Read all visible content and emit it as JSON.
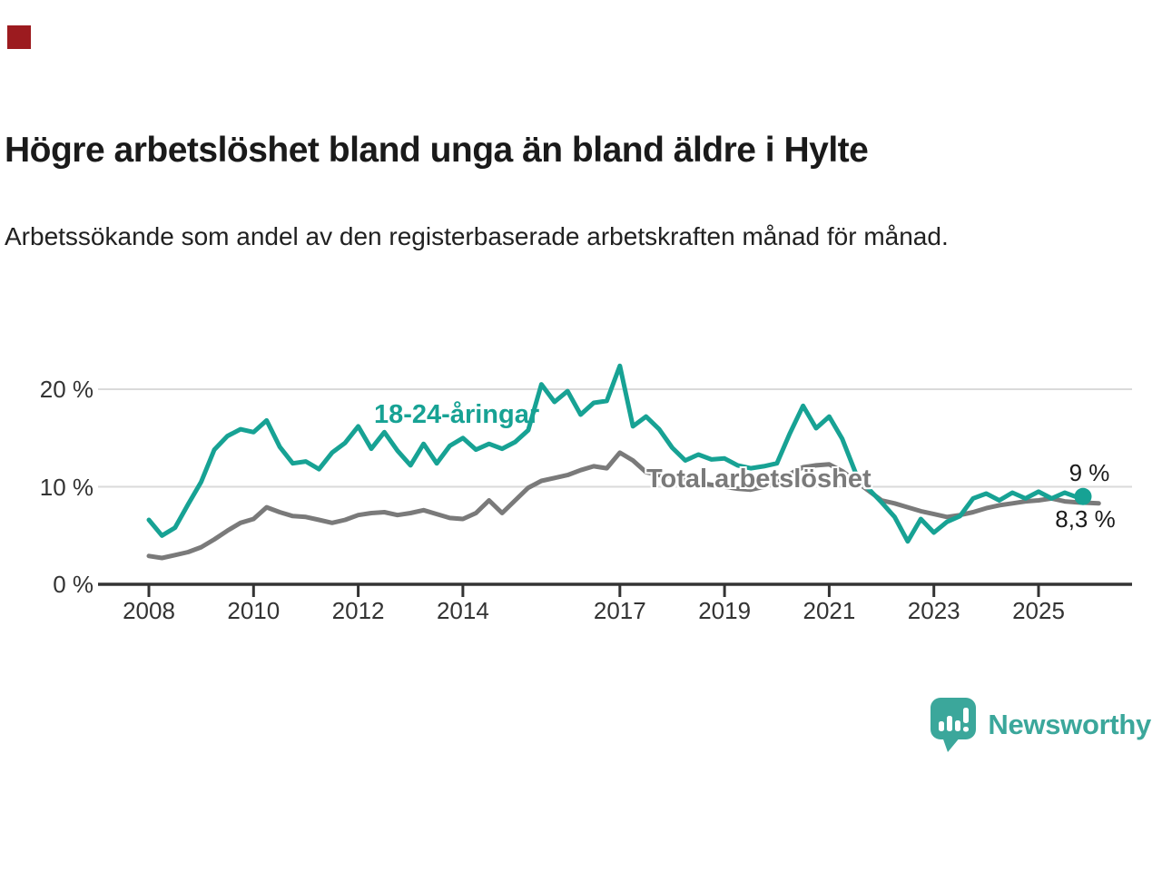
{
  "brand": {
    "category_square_color": "#9c1b1f",
    "logo": {
      "text": "Newsworthy",
      "color": "#3ba79b",
      "icon": "bar-chart-speech-bubble"
    }
  },
  "header": {
    "title": "Högre arbetslöshet bland unga än bland äldre i Hylte",
    "subtitle": "Arbetssökande som andel av den registerbaserade arbetskraften månad för månad."
  },
  "chart_data": {
    "type": "line",
    "grid": "horizontal-only",
    "legend_position": "inline-labels-on-chart",
    "xlim": [
      2007.0,
      2026.6
    ],
    "ylim": [
      0,
      24
    ],
    "yticks": [
      {
        "value": 0,
        "label": "0 %"
      },
      {
        "value": 10,
        "label": "10 %"
      },
      {
        "value": 20,
        "label": "20 %"
      }
    ],
    "xticks": [
      {
        "value": 2008,
        "label": "2008"
      },
      {
        "value": 2010,
        "label": "2010"
      },
      {
        "value": 2012,
        "label": "2012"
      },
      {
        "value": 2014,
        "label": "2014"
      },
      {
        "value": 2017,
        "label": "2017"
      },
      {
        "value": 2019,
        "label": "2019"
      },
      {
        "value": 2021,
        "label": "2021"
      },
      {
        "value": 2023,
        "label": "2023"
      },
      {
        "value": 2025,
        "label": "2025"
      }
    ],
    "unit": "% av registerbaserad arbetskraft",
    "series": [
      {
        "name": "Total arbetslöshet",
        "color": "#7a7a7a",
        "end_label": "8,3 %",
        "end_dot": false,
        "x_start": 2008,
        "x_step_years": 0.25,
        "values": [
          2.9,
          2.7,
          3.0,
          3.3,
          3.8,
          4.6,
          5.5,
          6.3,
          6.7,
          7.9,
          7.4,
          7.0,
          6.9,
          6.6,
          6.3,
          6.6,
          7.1,
          7.3,
          7.4,
          7.1,
          7.3,
          7.6,
          7.2,
          6.8,
          6.7,
          7.3,
          8.6,
          7.3,
          8.6,
          9.9,
          10.6,
          10.9,
          11.2,
          11.7,
          12.1,
          11.9,
          13.5,
          12.7,
          11.5,
          11.2,
          11.0,
          10.7,
          10.4,
          10.2,
          10.0,
          9.8,
          9.7,
          10.0,
          10.4,
          11.3,
          12.0,
          12.2,
          12.3,
          11.6,
          10.6,
          9.6,
          8.6,
          8.3,
          7.9,
          7.5,
          7.2,
          6.9,
          7.1,
          7.4,
          7.8,
          8.1,
          8.3,
          8.5,
          8.6,
          8.8,
          8.5,
          8.4
        ],
        "end_point": {
          "x": 2026.15,
          "value": 8.3
        }
      },
      {
        "name": "18-24-åringar",
        "color": "#17a294",
        "end_label": "9 %",
        "end_dot": true,
        "x_start": 2008,
        "x_step_years": 0.25,
        "values": [
          6.6,
          5.0,
          5.8,
          8.2,
          10.5,
          13.8,
          15.2,
          15.9,
          15.6,
          16.8,
          14.1,
          12.4,
          12.6,
          11.8,
          13.5,
          14.5,
          16.2,
          13.9,
          15.6,
          13.7,
          12.2,
          14.4,
          12.4,
          14.2,
          15.0,
          13.8,
          14.4,
          13.9,
          14.6,
          15.8,
          20.5,
          18.7,
          19.8,
          17.4,
          18.6,
          18.8,
          22.4,
          16.2,
          17.2,
          15.9,
          14.0,
          12.7,
          13.3,
          12.8,
          12.9,
          12.2,
          11.9,
          12.1,
          12.4,
          15.5,
          18.3,
          16.0,
          17.2,
          14.9,
          11.5,
          9.8,
          8.4,
          6.9,
          4.4,
          6.7,
          5.3,
          6.4,
          7.0,
          8.8,
          9.3,
          8.6,
          9.4,
          8.8,
          9.5,
          8.8,
          9.4,
          8.9
        ],
        "end_point": {
          "x": 2025.85,
          "value": 9.0
        }
      }
    ]
  }
}
